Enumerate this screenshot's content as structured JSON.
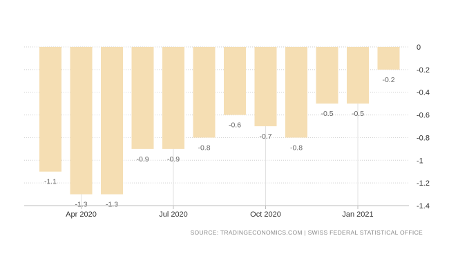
{
  "chart_data": {
    "type": "bar",
    "categories": [
      "Mar 2020",
      "Apr 2020",
      "May 2020",
      "Jun 2020",
      "Jul 2020",
      "Aug 2020",
      "Sep 2020",
      "Oct 2020",
      "Nov 2020",
      "Dec 2020",
      "Jan 2021",
      "Feb 2021"
    ],
    "values": [
      -1.1,
      -1.3,
      -1.3,
      -0.9,
      -0.9,
      -0.8,
      -0.6,
      -0.7,
      -0.8,
      -0.5,
      -0.5,
      -0.2
    ],
    "data_labels": [
      "-1.1",
      "-1.3",
      "-1.3",
      "-0.9",
      "-0.9",
      "-0.8",
      "-0.6",
      "-0.7",
      "-0.8",
      "-0.5",
      "-0.5",
      "-0.2"
    ],
    "x_ticks": [
      {
        "label": "Apr 2020",
        "category": "Apr 2020"
      },
      {
        "label": "Jul 2020",
        "category": "Jul 2020"
      },
      {
        "label": "Oct 2020",
        "category": "Oct 2020"
      },
      {
        "label": "Jan 2021",
        "category": "Jan 2021"
      }
    ],
    "y_ticks": [
      0,
      -0.2,
      -0.4,
      -0.6,
      -0.8,
      -1,
      -1.2,
      -1.4
    ],
    "y_tick_labels": [
      "0",
      "-0.2",
      "-0.4",
      "-0.6",
      "-0.8",
      "-1",
      "-1.2",
      "-1.4"
    ],
    "ylim": [
      -1.4,
      0
    ],
    "y_axis_side": "right",
    "grid": true,
    "title": "",
    "xlabel": "",
    "ylabel": "",
    "bar_color": "#f5deb3"
  },
  "source_text": "SOURCE: TRADINGECONOMICS.COM | SWISS FEDERAL STATISTICAL OFFICE"
}
